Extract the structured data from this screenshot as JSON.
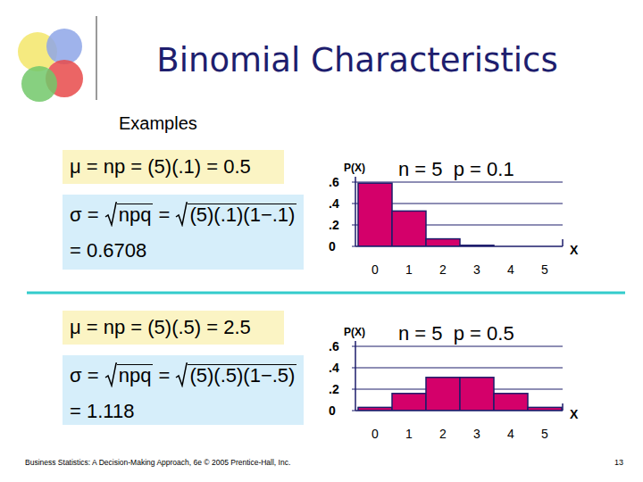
{
  "slide": {
    "title": "Binomial Characteristics",
    "subtitle": "Examples",
    "footer": "Business Statistics: A Decision-Making Approach, 6e © 2005 Prentice-Hall, Inc.",
    "page": "13",
    "examples": [
      {
        "mean": "μ = np = (5)(.1) = 0.5",
        "sd": [
          "σ = ",
          {
            "sqrt": "npq"
          },
          " = ",
          {
            "sqrt": "(5)(.1)(1−.1)"
          }
        ],
        "sd_result": "= 0.6708"
      },
      {
        "mean": "μ = np = (5)(.5) = 2.5",
        "sd": [
          "σ = ",
          {
            "sqrt": "npq"
          },
          " = ",
          {
            "sqrt": "(5)(.5)(1−.5)"
          }
        ],
        "sd_result": "= 1.118"
      }
    ]
  },
  "chart_data": [
    {
      "type": "bar",
      "title": "n = 5  p = 0.1",
      "y_label": "P(X)",
      "x_label": "X",
      "categories": [
        "0",
        "1",
        "2",
        "3",
        "4",
        "5"
      ],
      "values": [
        0.59,
        0.33,
        0.07,
        0.01,
        0,
        0
      ],
      "color": "#d4006a",
      "ylim": [
        0,
        0.65
      ],
      "yticks": [
        0,
        {
          "value": 0.2,
          "label": ".2"
        },
        {
          "value": 0.4,
          "label": ".4"
        },
        {
          "value": 0.6,
          "label": ".6"
        }
      ],
      "grid": true
    },
    {
      "type": "bar",
      "title": "n = 5  p = 0.5",
      "y_label": "P(X)",
      "x_label": "X",
      "categories": [
        "0",
        "1",
        "2",
        "3",
        "4",
        "5"
      ],
      "values": [
        0.03,
        0.16,
        0.31,
        0.31,
        0.16,
        0.03
      ],
      "color": "#d4006a",
      "ylim": [
        0,
        0.65
      ],
      "yticks": [
        0,
        {
          "value": 0.2,
          "label": ".2"
        },
        {
          "value": 0.4,
          "label": ".4"
        },
        {
          "value": 0.6,
          "label": ".6"
        }
      ],
      "grid": true
    }
  ]
}
